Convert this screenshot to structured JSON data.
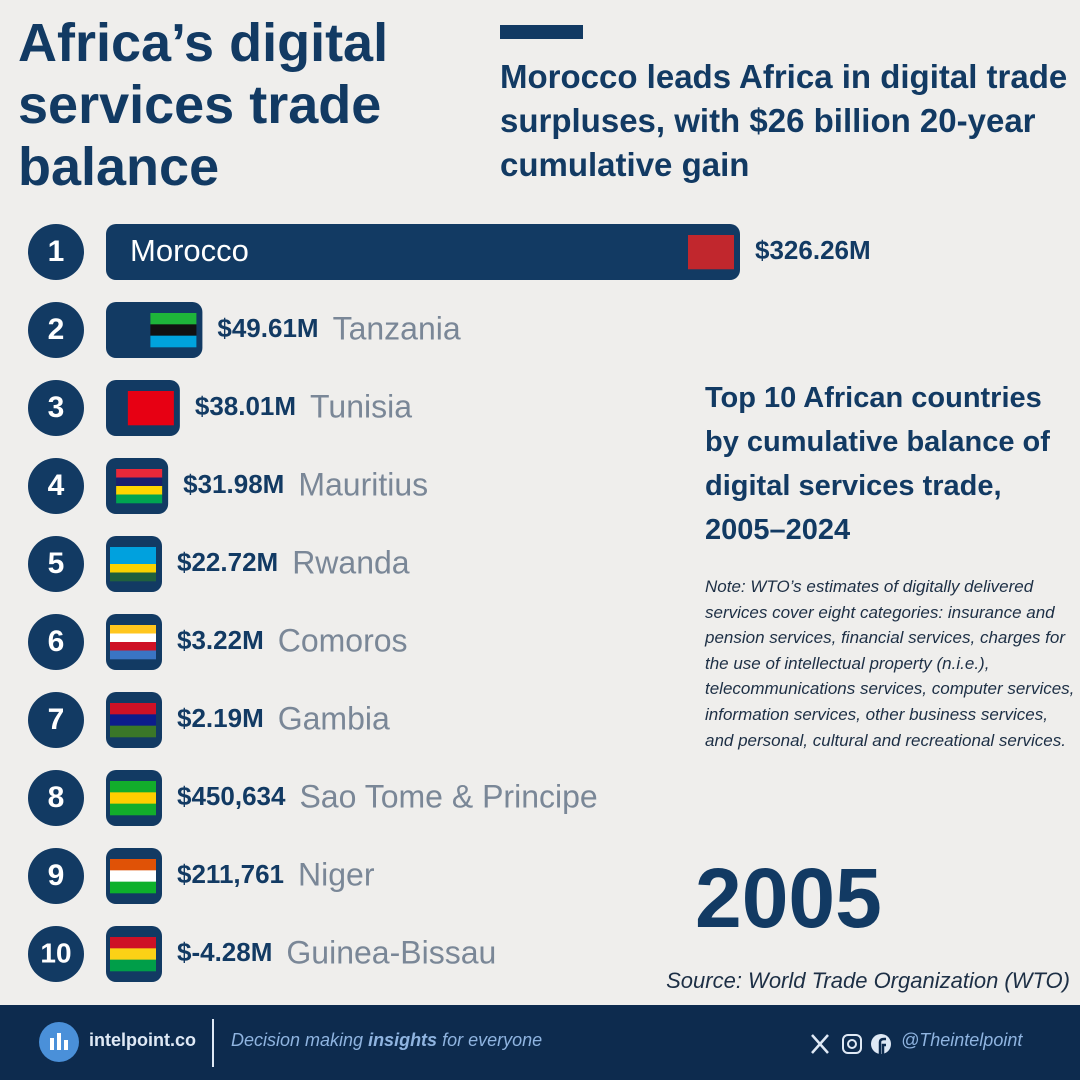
{
  "chart_data": {
    "type": "bar",
    "title": "Africa’s digital services trade balance",
    "subtitle": "Morocco leads Africa in digital trade surpluses, with $26 billion 20-year cumulative gain",
    "description": "Top 10 African countries by cumulative balance of digital services trade, 2005–2024",
    "note": "Note: WTO’s estimates of digitally delivered services cover eight categories: insurance and pension services, financial services, charges for the use of intellectual property (n.i.e.), telecommunications services, computer services, information services, other business services, and personal, cultural and recreational services.",
    "year": "2005",
    "source": "Source: World Trade Organization (WTO)",
    "ranks": [
      1,
      2,
      3,
      4,
      5,
      6,
      7,
      8,
      9,
      10
    ],
    "categories": [
      "Morocco",
      "Tanzania",
      "Tunisia",
      "Mauritius",
      "Rwanda",
      "Comoros",
      "Gambia",
      "Sao Tome & Principe",
      "Niger",
      "Guinea-Bissau"
    ],
    "values": [
      326260000,
      49610000,
      38010000,
      31980000,
      22720000,
      3220000,
      2190000,
      450634,
      211761,
      -4280000
    ],
    "value_labels": [
      "$326.26M",
      "$49.61M",
      "$38.01M",
      "$31.98M",
      "$22.72M",
      "$3.22M",
      "$2.19M",
      "$450,634",
      "$211,761",
      "$-4.28M"
    ],
    "color": "#123a63"
  },
  "footer": {
    "brand": "intelpoint.co",
    "tagline": [
      "Decision making ",
      "insights",
      " for everyone"
    ],
    "handle": "@Theintelpoint"
  }
}
